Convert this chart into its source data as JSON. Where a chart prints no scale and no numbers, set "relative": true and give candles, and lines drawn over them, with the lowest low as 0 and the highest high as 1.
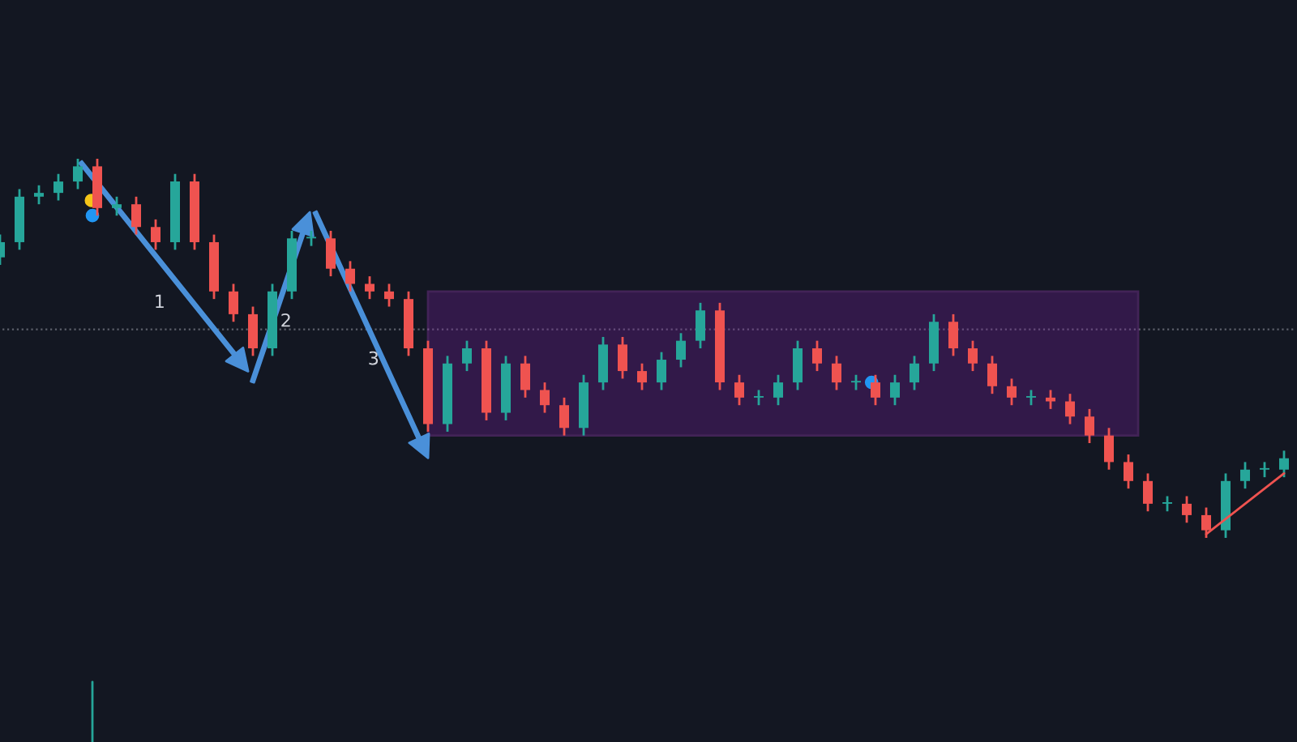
{
  "chart_data": {
    "type": "candlestick",
    "relative": true,
    "categories": [
      null,
      null,
      null,
      null,
      null,
      null,
      null,
      null,
      null,
      null,
      null,
      null,
      null,
      null,
      null,
      null,
      null,
      null,
      null,
      null,
      null,
      null,
      null,
      null,
      null,
      null,
      null,
      null,
      null,
      null,
      null,
      null,
      null,
      null,
      null,
      null,
      null,
      null,
      null,
      null,
      null,
      null,
      null,
      null,
      null,
      null,
      null,
      null,
      null,
      null,
      null,
      null,
      null,
      null,
      null,
      null,
      null,
      null,
      null,
      null,
      null,
      null,
      null,
      null,
      null,
      null,
      null
    ],
    "ohlc": [
      [
        0.74,
        0.8,
        0.72,
        0.78
      ],
      [
        0.78,
        0.92,
        0.76,
        0.9
      ],
      [
        0.9,
        0.93,
        0.88,
        0.91
      ],
      [
        0.91,
        0.96,
        0.89,
        0.94
      ],
      [
        0.94,
        1.0,
        0.92,
        0.98
      ],
      [
        0.98,
        1.0,
        0.85,
        0.87
      ],
      [
        0.87,
        0.9,
        0.85,
        0.88
      ],
      [
        0.88,
        0.9,
        0.8,
        0.82
      ],
      [
        0.82,
        0.84,
        0.76,
        0.78
      ],
      [
        0.78,
        0.96,
        0.76,
        0.94
      ],
      [
        0.94,
        0.96,
        0.76,
        0.78
      ],
      [
        0.78,
        0.8,
        0.63,
        0.65
      ],
      [
        0.65,
        0.67,
        0.57,
        0.59
      ],
      [
        0.59,
        0.61,
        0.48,
        0.5
      ],
      [
        0.5,
        0.67,
        0.48,
        0.65
      ],
      [
        0.65,
        0.81,
        0.63,
        0.79
      ],
      [
        0.79,
        0.81,
        0.77,
        0.79
      ],
      [
        0.79,
        0.81,
        0.69,
        0.71
      ],
      [
        0.71,
        0.73,
        0.65,
        0.67
      ],
      [
        0.67,
        0.69,
        0.63,
        0.65
      ],
      [
        0.65,
        0.67,
        0.61,
        0.63
      ],
      [
        0.63,
        0.65,
        0.48,
        0.5
      ],
      [
        0.5,
        0.52,
        0.28,
        0.3
      ],
      [
        0.3,
        0.48,
        0.28,
        0.46
      ],
      [
        0.46,
        0.52,
        0.44,
        0.5
      ],
      [
        0.5,
        0.52,
        0.31,
        0.33
      ],
      [
        0.33,
        0.48,
        0.31,
        0.46
      ],
      [
        0.46,
        0.48,
        0.37,
        0.39
      ],
      [
        0.39,
        0.41,
        0.33,
        0.35
      ],
      [
        0.35,
        0.37,
        0.27,
        0.29
      ],
      [
        0.29,
        0.43,
        0.27,
        0.41
      ],
      [
        0.41,
        0.53,
        0.39,
        0.51
      ],
      [
        0.51,
        0.53,
        0.42,
        0.44
      ],
      [
        0.44,
        0.46,
        0.39,
        0.41
      ],
      [
        0.41,
        0.49,
        0.39,
        0.47
      ],
      [
        0.47,
        0.54,
        0.45,
        0.52
      ],
      [
        0.52,
        0.62,
        0.5,
        0.6
      ],
      [
        0.6,
        0.62,
        0.39,
        0.41
      ],
      [
        0.41,
        0.43,
        0.35,
        0.37
      ],
      [
        0.37,
        0.39,
        0.35,
        0.37
      ],
      [
        0.37,
        0.43,
        0.35,
        0.41
      ],
      [
        0.41,
        0.52,
        0.39,
        0.5
      ],
      [
        0.5,
        0.52,
        0.44,
        0.46
      ],
      [
        0.46,
        0.48,
        0.39,
        0.41
      ],
      [
        0.41,
        0.43,
        0.39,
        0.41
      ],
      [
        0.41,
        0.43,
        0.35,
        0.37
      ],
      [
        0.37,
        0.43,
        0.35,
        0.41
      ],
      [
        0.41,
        0.48,
        0.39,
        0.46
      ],
      [
        0.46,
        0.59,
        0.44,
        0.57
      ],
      [
        0.57,
        0.59,
        0.48,
        0.5
      ],
      [
        0.5,
        0.52,
        0.44,
        0.46
      ],
      [
        0.46,
        0.48,
        0.38,
        0.4
      ],
      [
        0.4,
        0.42,
        0.35,
        0.37
      ],
      [
        0.37,
        0.39,
        0.35,
        0.37
      ],
      [
        0.37,
        0.39,
        0.34,
        0.36
      ],
      [
        0.36,
        0.38,
        0.3,
        0.32
      ],
      [
        0.32,
        0.34,
        0.25,
        0.27
      ],
      [
        0.27,
        0.29,
        0.18,
        0.2
      ],
      [
        0.2,
        0.22,
        0.13,
        0.15
      ],
      [
        0.15,
        0.17,
        0.07,
        0.09
      ],
      [
        0.09,
        0.11,
        0.07,
        0.09
      ],
      [
        0.09,
        0.11,
        0.04,
        0.06
      ],
      [
        0.06,
        0.08,
        0.0,
        0.02
      ],
      [
        0.02,
        0.17,
        0.0,
        0.15
      ],
      [
        0.15,
        0.2,
        0.13,
        0.18
      ],
      [
        0.18,
        0.2,
        0.16,
        0.18
      ],
      [
        0.18,
        0.23,
        0.16,
        0.21
      ]
    ],
    "series": [
      {
        "type": "line",
        "color": "#ef5350",
        "values": [
          null,
          null,
          null,
          null,
          null,
          null,
          null,
          null,
          null,
          null,
          null,
          null,
          null,
          null,
          null,
          null,
          null,
          null,
          null,
          null,
          null,
          null,
          null,
          null,
          null,
          null,
          null,
          null,
          null,
          null,
          null,
          null,
          null,
          null,
          null,
          null,
          null,
          null,
          null,
          null,
          null,
          null,
          null,
          null,
          null,
          null,
          null,
          null,
          null,
          null,
          null,
          null,
          null,
          null,
          null,
          null,
          null,
          null,
          null,
          null,
          null,
          null,
          0.01,
          0.05,
          0.09,
          0.13,
          0.17
        ]
      }
    ],
    "ref_lines": [
      {
        "axis": "y",
        "value": 0.55,
        "color": "#5d606b",
        "line_style": "dotted"
      }
    ],
    "annotations": [
      "1",
      "2",
      "3"
    ]
  }
}
